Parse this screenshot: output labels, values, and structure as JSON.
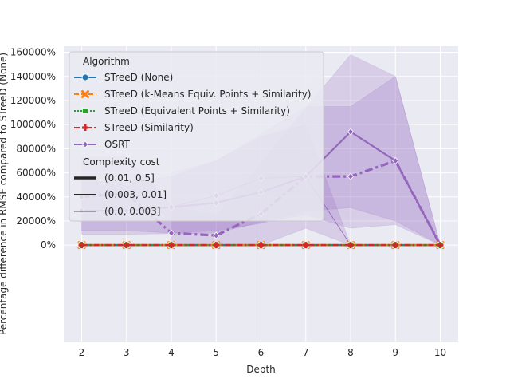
{
  "chart_data": {
    "type": "line",
    "xlabel": "Depth",
    "ylabel": "Percentage difference in RMSE compared to STreeD (None)",
    "x": [
      2,
      3,
      4,
      5,
      6,
      7,
      8,
      9,
      10
    ],
    "xlim": [
      1.6,
      10.4
    ],
    "ylim": [
      -80000,
      165000
    ],
    "yticks": [
      0,
      20000,
      40000,
      60000,
      80000,
      100000,
      120000,
      140000,
      160000
    ],
    "ytick_labels": [
      "0%",
      "20000%",
      "40000%",
      "60000%",
      "80000%",
      "100000%",
      "120000%",
      "140000%",
      "160000%"
    ],
    "grid": true,
    "legend_placement": "upper-left",
    "legend": {
      "algorithm_title": "Algorithm",
      "algorithm_entries": [
        {
          "label": "STreeD (None)",
          "color": "#1f77b4",
          "marker": "circle",
          "dash": "solid"
        },
        {
          "label": "STreeD (k-Means Equiv. Points + Similarity)",
          "color": "#ff7f0e",
          "marker": "x",
          "dash": "dashed"
        },
        {
          "label": "STreeD (Equivalent Points + Similarity)",
          "color": "#2ca02c",
          "marker": "square",
          "dash": "dotted"
        },
        {
          "label": "STreeD (Similarity)",
          "color": "#d62728",
          "marker": "plus",
          "dash": "dashdot"
        },
        {
          "label": "OSRT",
          "color": "#9467bd",
          "marker": "diamond",
          "dash": "solid"
        }
      ],
      "cost_title": "Complexity cost",
      "cost_entries": [
        {
          "label": "(0.01, 0.5]",
          "width": 3.5
        },
        {
          "label": "(0.003, 0.01]",
          "width": 2
        },
        {
          "label": "(0.0, 0.003]",
          "width": 0.8
        }
      ]
    },
    "series": [
      {
        "algorithm": "OSRT",
        "cost": "(0.01, 0.5]",
        "width": 3.2,
        "color": "#9467bd",
        "values": [
          40000,
          43000,
          10000,
          8000,
          26000,
          57000,
          57000,
          70000,
          0
        ],
        "band_low": [
          12000,
          12000,
          10000,
          12000,
          18000,
          28000,
          31000,
          20000,
          0
        ],
        "band_high": [
          53000,
          52000,
          57000,
          70000,
          92000,
          115000,
          115000,
          140000,
          0
        ]
      },
      {
        "algorithm": "OSRT",
        "cost": "(0.003, 0.01]",
        "width": 2.2,
        "color": "#9467bd",
        "values": [
          28500,
          28500,
          31500,
          35000,
          44000,
          57000,
          94000,
          70000,
          0
        ],
        "band_low": [
          9000,
          9000,
          9500,
          10000,
          19000,
          25000,
          14000,
          17000,
          0
        ],
        "band_high": [
          73000,
          73000,
          33000,
          25000,
          68000,
          114000,
          158000,
          140000,
          0
        ]
      },
      {
        "algorithm": "OSRT",
        "cost": "(0.0, 0.003]",
        "width": 0.8,
        "color": "#9467bd",
        "values": [
          null,
          null,
          31500,
          41000,
          55500,
          57000,
          0,
          0,
          0
        ],
        "band_low": [
          null,
          null,
          0,
          0,
          0,
          14000,
          0,
          0,
          0
        ],
        "band_high": [
          null,
          null,
          60000,
          70000,
          90000,
          100000,
          0,
          0,
          0
        ]
      },
      {
        "algorithm": "STreeD (None)",
        "cost": "(0.01, 0.5]",
        "width": 2.5,
        "color": "#1f77b4",
        "values": [
          0,
          0,
          0,
          0,
          0,
          0,
          0,
          0,
          0
        ]
      },
      {
        "algorithm": "STreeD (k-Means Equiv. Points + Similarity)",
        "cost": "(0.01, 0.5]",
        "width": 2.5,
        "color": "#ff7f0e",
        "values": [
          0,
          0,
          0,
          0,
          0,
          0,
          0,
          0,
          0
        ]
      },
      {
        "algorithm": "STreeD (Equivalent Points + Similarity)",
        "cost": "(0.01, 0.5]",
        "width": 2.5,
        "color": "#2ca02c",
        "values": [
          0,
          0,
          0,
          0,
          0,
          0,
          0,
          0,
          0
        ]
      },
      {
        "algorithm": "STreeD (Similarity)",
        "cost": "(0.01, 0.5]",
        "width": 2.5,
        "color": "#d62728",
        "values": [
          0,
          0,
          0,
          0,
          0,
          0,
          0,
          0,
          0
        ]
      }
    ]
  }
}
